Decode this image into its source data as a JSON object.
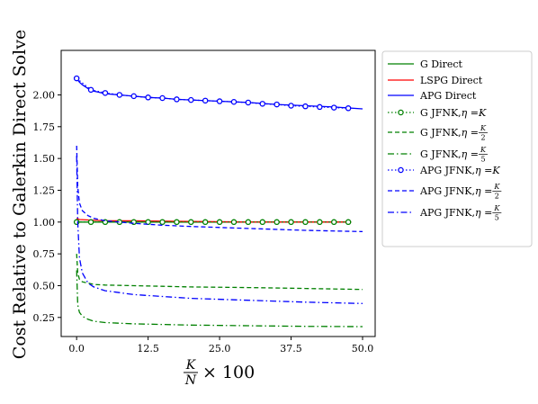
{
  "chart_data": {
    "type": "line",
    "ylabel": "Cost Relative to Galerkin Direct Solve",
    "xlabel_parts": {
      "num": "K",
      "den": "N",
      "suffix": "× 100"
    },
    "xlim": [
      -2.7,
      52.2
    ],
    "ylim": [
      0.1,
      2.35
    ],
    "xticks": [
      0.0,
      12.5,
      25.0,
      37.5,
      50.0
    ],
    "xtick_labels": [
      "0.0",
      "12.5",
      "25.0",
      "37.5",
      "50.0"
    ],
    "yticks": [
      0.25,
      0.5,
      0.75,
      1.0,
      1.25,
      1.5,
      1.75,
      2.0
    ],
    "ytick_labels": [
      "0.25",
      "0.50",
      "0.75",
      "1.00",
      "1.25",
      "1.50",
      "1.75",
      "2.00"
    ],
    "grid": false,
    "legend_position": "outside-right",
    "series": [
      {
        "name": "G Direct",
        "color": "#008000",
        "style": "solid",
        "marker": "none",
        "x": [
          0.0,
          0.5,
          5,
          10,
          20,
          30,
          40,
          48
        ],
        "y": [
          1.0,
          1.0,
          1.0,
          1.0,
          1.0,
          1.0,
          1.0,
          1.0
        ]
      },
      {
        "name": "LSPG Direct",
        "color": "#ff0000",
        "style": "solid",
        "marker": "none",
        "x": [
          0.0,
          0.5,
          5,
          10,
          20,
          30,
          40,
          48
        ],
        "y": [
          1.03,
          1.02,
          1.01,
          1.01,
          1.005,
          1.0,
          1.0,
          1.0
        ]
      },
      {
        "name": "APG Direct",
        "color": "#0000ff",
        "style": "solid",
        "marker": "none",
        "x": [
          0.0,
          0.5,
          1,
          2,
          3,
          5,
          7.5,
          10,
          12.5,
          15,
          17.5,
          20,
          25,
          30,
          35,
          40,
          45,
          50
        ],
        "y": [
          2.13,
          2.1,
          2.08,
          2.05,
          2.03,
          2.01,
          2.0,
          1.99,
          1.98,
          1.975,
          1.965,
          1.96,
          1.95,
          1.94,
          1.925,
          1.915,
          1.905,
          1.89
        ]
      },
      {
        "name": "G JFNK, η = K",
        "name_prefix": "G JFNK,",
        "eta_kind": "K",
        "color": "#008000",
        "style": "dotted",
        "marker": "circle",
        "x": [
          0.0,
          2.5,
          5,
          7.5,
          10,
          12.5,
          15,
          17.5,
          20,
          22.5,
          25,
          27.5,
          30,
          32.5,
          35,
          37.5,
          40,
          42.5,
          45,
          47.5
        ],
        "y": [
          1.0,
          1.0,
          1.0,
          1.0,
          1.0,
          1.0,
          1.0,
          1.0,
          1.0,
          1.0,
          1.0,
          1.0,
          1.0,
          1.0,
          1.0,
          1.0,
          1.0,
          1.0,
          1.0,
          1.0
        ]
      },
      {
        "name": "G JFNK, η = K/2",
        "name_prefix": "G JFNK,",
        "eta_kind": "K/2",
        "eta_den": "2",
        "color": "#008000",
        "style": "dashed",
        "marker": "none",
        "x": [
          0.0,
          0.2,
          0.5,
          1,
          2,
          3,
          5,
          10,
          15,
          20,
          30,
          40,
          50
        ],
        "y": [
          0.75,
          0.6,
          0.55,
          0.53,
          0.52,
          0.51,
          0.505,
          0.5,
          0.495,
          0.49,
          0.485,
          0.478,
          0.47
        ]
      },
      {
        "name": "G JFNK, η = K/5",
        "name_prefix": "G JFNK,",
        "eta_kind": "K/5",
        "eta_den": "5",
        "color": "#008000",
        "style": "dashdot",
        "marker": "none",
        "x": [
          0.0,
          0.2,
          0.5,
          1,
          2,
          3,
          5,
          10,
          15,
          20,
          30,
          40,
          50
        ],
        "y": [
          0.62,
          0.35,
          0.29,
          0.26,
          0.235,
          0.22,
          0.21,
          0.2,
          0.195,
          0.19,
          0.185,
          0.18,
          0.178
        ]
      },
      {
        "name": "APG JFNK, η = K",
        "name_prefix": "APG JFNK,",
        "eta_kind": "K",
        "color": "#0000ff",
        "style": "dotted",
        "marker": "circle",
        "x": [
          0.0,
          2.5,
          5,
          7.5,
          10,
          12.5,
          15,
          17.5,
          20,
          22.5,
          25,
          27.5,
          30,
          32.5,
          35,
          37.5,
          40,
          42.5,
          45,
          47.5
        ],
        "y": [
          2.13,
          2.04,
          2.015,
          2.0,
          1.99,
          1.98,
          1.975,
          1.965,
          1.96,
          1.955,
          1.95,
          1.945,
          1.94,
          1.93,
          1.925,
          1.915,
          1.91,
          1.905,
          1.9,
          1.895
        ]
      },
      {
        "name": "APG JFNK, η = K/2",
        "name_prefix": "APG JFNK,",
        "eta_kind": "K/2",
        "eta_den": "2",
        "color": "#0000ff",
        "style": "dashed",
        "marker": "none",
        "x": [
          0.0,
          0.2,
          0.5,
          1,
          2,
          3,
          5,
          10,
          15,
          20,
          30,
          40,
          50
        ],
        "y": [
          1.6,
          1.28,
          1.15,
          1.09,
          1.05,
          1.03,
          1.01,
          0.99,
          0.975,
          0.965,
          0.95,
          0.935,
          0.925
        ]
      },
      {
        "name": "APG JFNK, η = K/5",
        "name_prefix": "APG JFNK,",
        "eta_kind": "K/5",
        "eta_den": "5",
        "color": "#0000ff",
        "style": "dashdot",
        "marker": "none",
        "x": [
          0.0,
          0.2,
          0.5,
          1,
          2,
          3,
          5,
          10,
          15,
          20,
          30,
          40,
          50
        ],
        "y": [
          1.52,
          1.0,
          0.72,
          0.6,
          0.52,
          0.49,
          0.46,
          0.43,
          0.415,
          0.4,
          0.385,
          0.37,
          0.36
        ]
      }
    ]
  }
}
